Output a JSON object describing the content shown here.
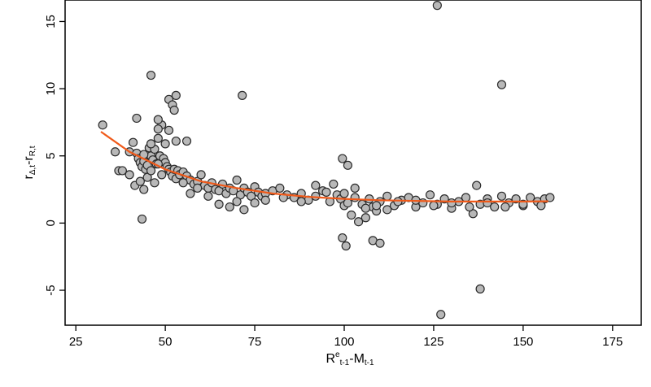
{
  "chart_data": {
    "type": "scatter",
    "title": "",
    "xlabel": {
      "base": "R",
      "sup": "e",
      "sub1": "t-1",
      "mid": "-M",
      "sub2": "t-1"
    },
    "ylabel": {
      "base1": "r",
      "sub1": "Δ,t",
      "mid": "-r",
      "sub2": "R,t"
    },
    "xlim": [
      22,
      183
    ],
    "ylim": [
      -7.6,
      16.6
    ],
    "xticks": [
      25,
      50,
      75,
      100,
      125,
      150,
      175
    ],
    "yticks": [
      -5,
      0,
      5,
      10,
      15
    ],
    "grid": false,
    "legend": "none",
    "colors": {
      "point_fill": "#b8b8b8",
      "point_stroke": "#2b2b2b",
      "fit_line": "#f05a1a",
      "frame": "#000000"
    },
    "fit_line": {
      "type": "line",
      "x": [
        32,
        40,
        50,
        60,
        70,
        80,
        90,
        100,
        110,
        120,
        130,
        140,
        150,
        157
      ],
      "y": [
        6.8,
        5.3,
        4.0,
        3.1,
        2.6,
        2.2,
        1.95,
        1.8,
        1.7,
        1.65,
        1.6,
        1.6,
        1.6,
        1.62
      ]
    },
    "series": [
      {
        "x": [
          32.5,
          36,
          37,
          38,
          40,
          41,
          42,
          42.5,
          43,
          43.5,
          44,
          44.5,
          45,
          45.5,
          46,
          46.5,
          47,
          47.5,
          48,
          48.5,
          49,
          49.5,
          50,
          50.5,
          51,
          51.5,
          52,
          52.5,
          53,
          53.5,
          54,
          55,
          56,
          57,
          58,
          59,
          60,
          61,
          62,
          63,
          64,
          65,
          66,
          67,
          68,
          69,
          70,
          71,
          72,
          73,
          74,
          75,
          76,
          77,
          78,
          80,
          82,
          84,
          86,
          88,
          90,
          92,
          94,
          96,
          98,
          99,
          100,
          101,
          102,
          103,
          104,
          105,
          106,
          107,
          108,
          109,
          110,
          112,
          114,
          116,
          118,
          120,
          122,
          124,
          126,
          128,
          130,
          132,
          134,
          136,
          137,
          138,
          140,
          142,
          144,
          146,
          148,
          150,
          152,
          154,
          156,
          157.5,
          40,
          41.5,
          43,
          44,
          45,
          46,
          47,
          48,
          49,
          50,
          51,
          53,
          55,
          57,
          59,
          62,
          65,
          68,
          70,
          72,
          75,
          78,
          83,
          88,
          92,
          95,
          97,
          100,
          103,
          106,
          109,
          112,
          115,
          120,
          125,
          130,
          135,
          140,
          145,
          150,
          155,
          42,
          44,
          46,
          48,
          51,
          52,
          52.5,
          53,
          43.5,
          46,
          48,
          56,
          71.5,
          99.5,
          101,
          99.5,
          100.5,
          108,
          110,
          126,
          138,
          144,
          127
        ],
        "y": [
          7.3,
          5.3,
          3.9,
          3.9,
          5.3,
          6.0,
          5.2,
          4.8,
          4.5,
          4.2,
          4.6,
          4.0,
          4.3,
          5.6,
          5.0,
          4.7,
          5.5,
          4.4,
          6.3,
          5.0,
          7.3,
          4.8,
          4.5,
          4.2,
          4.0,
          3.8,
          3.5,
          4.0,
          3.3,
          3.9,
          3.6,
          3.8,
          3.5,
          3.2,
          2.9,
          3.1,
          3.6,
          2.8,
          2.6,
          3.0,
          2.5,
          2.4,
          2.9,
          2.2,
          2.6,
          2.4,
          3.2,
          2.1,
          2.6,
          2.3,
          2.0,
          2.7,
          2.3,
          2.0,
          2.2,
          2.4,
          2.6,
          2.1,
          1.9,
          2.2,
          1.7,
          2.0,
          2.4,
          1.6,
          2.1,
          1.8,
          1.3,
          1.5,
          0.6,
          1.9,
          0.1,
          1.4,
          0.4,
          1.8,
          1.2,
          0.9,
          1.6,
          2.0,
          1.3,
          1.7,
          1.9,
          1.2,
          1.5,
          2.1,
          1.4,
          1.8,
          1.1,
          1.6,
          1.9,
          0.7,
          2.8,
          1.4,
          1.8,
          1.2,
          2.0,
          1.5,
          1.8,
          1.3,
          1.9,
          1.6,
          1.8,
          1.9,
          3.6,
          2.8,
          3.1,
          2.5,
          3.4,
          3.9,
          3.0,
          4.4,
          3.6,
          5.9,
          6.9,
          6.1,
          3.0,
          2.2,
          2.6,
          2.0,
          1.4,
          1.2,
          1.6,
          1.0,
          1.5,
          1.7,
          1.9,
          1.6,
          2.8,
          2.3,
          2.9,
          2.2,
          2.6,
          1.1,
          1.3,
          1.0,
          1.6,
          1.7,
          1.3,
          1.5,
          1.2,
          1.5,
          1.2,
          1.4,
          1.3,
          7.8,
          5.1,
          5.9,
          7.7,
          9.2,
          8.8,
          8.4,
          9.5,
          0.3,
          11.0,
          7.0,
          6.1,
          9.5,
          4.8,
          4.3,
          -1.1,
          -1.7,
          -1.3,
          -1.5,
          16.2,
          -4.9,
          10.3,
          -6.8
        ]
      }
    ]
  }
}
